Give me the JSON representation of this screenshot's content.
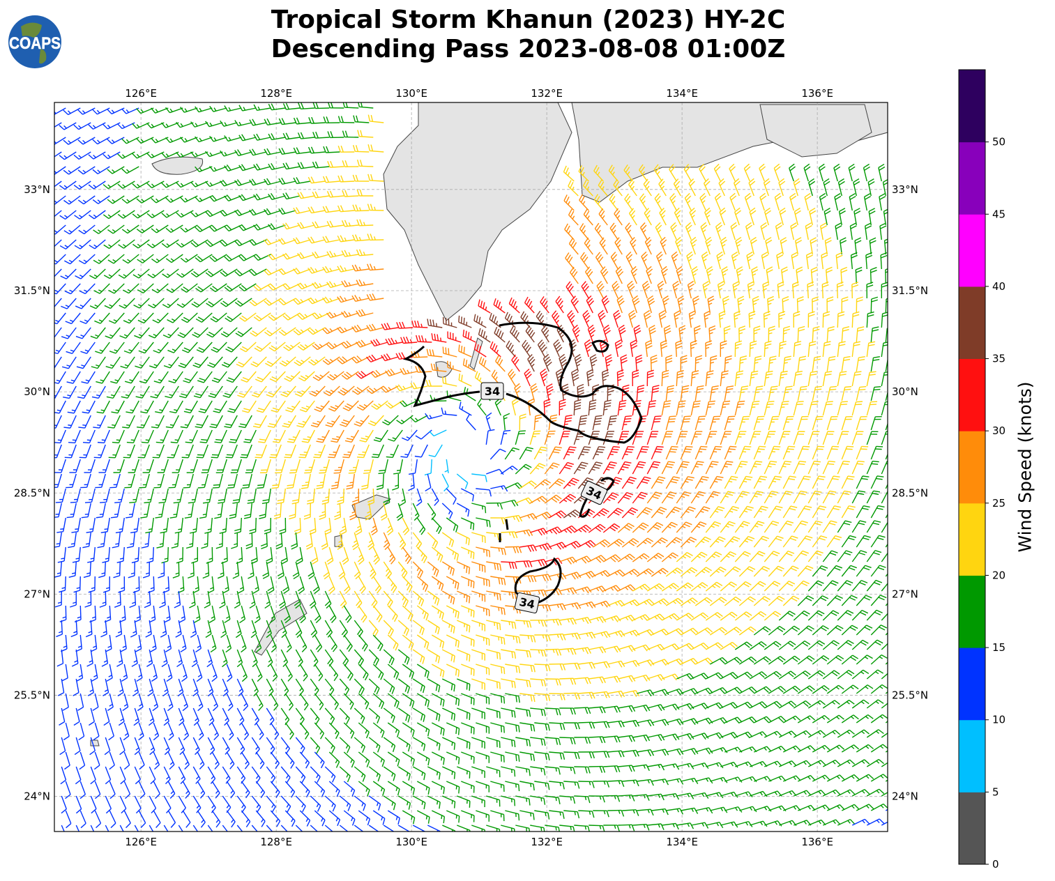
{
  "title": {
    "line1": "Tropical Storm Khanun (2023) HY-2C",
    "line2": "Descending Pass 2023-08-08 01:00Z"
  },
  "logo": {
    "text": "COAPS"
  },
  "chart_data": {
    "type": "map-wind-barbs",
    "extent": {
      "lon": [
        124.72,
        137.04
      ],
      "lat": [
        23.48,
        34.29
      ]
    },
    "lon_ticks": [
      126,
      128,
      130,
      132,
      134,
      136
    ],
    "lon_tick_labels": [
      "126°E",
      "128°E",
      "130°E",
      "132°E",
      "134°E",
      "136°E"
    ],
    "lat_ticks": [
      33,
      31.5,
      30,
      28.5,
      27,
      25.5,
      24
    ],
    "lat_tick_labels": [
      "33°N",
      "31.5°N",
      "30°N",
      "28.5°N",
      "27°N",
      "25.5°N",
      "24°N"
    ],
    "grid": true,
    "contour": {
      "level": 34,
      "labels": [
        "34",
        "34",
        "34"
      ],
      "color": "#000000"
    },
    "colorbar": {
      "label": "Wind Speed (knots)",
      "range": [
        0,
        55
      ],
      "ticks": [
        0,
        5,
        10,
        15,
        20,
        25,
        30,
        35,
        40,
        45,
        50
      ],
      "tick_labels": [
        "0",
        "5",
        "10",
        "15",
        "20",
        "25",
        "30",
        "35",
        "40",
        "45",
        "50"
      ],
      "colors": [
        "#555555",
        "#00bfff",
        "#0033ff",
        "#009900",
        "#ffd510",
        "#ff8c0a",
        "#ff1010",
        "#7f3c28",
        "#ff00ff",
        "#8800bb",
        "#2e005f"
      ]
    }
  }
}
